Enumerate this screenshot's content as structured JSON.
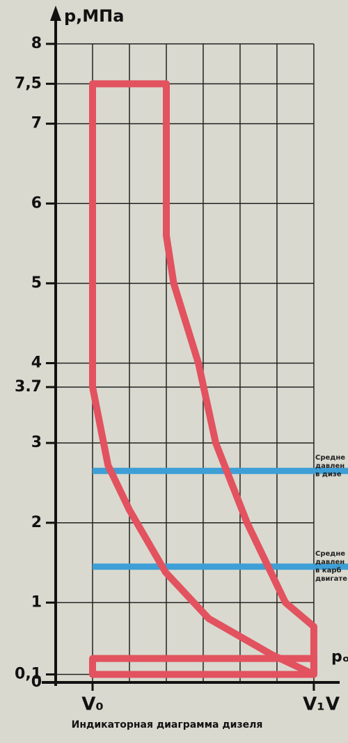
{
  "chart_data": {
    "type": "line",
    "title": "Индикаторная диаграмма дизеля",
    "ylabel": "p,МПа",
    "xlabel": "V",
    "ylim": [
      0,
      8
    ],
    "xlim": [
      0,
      7.7
    ],
    "yticks": [
      0,
      {
        "value": 0.1,
        "label": "0,1"
      },
      1,
      2,
      3,
      3.7,
      4,
      5,
      6,
      7,
      {
        "value": 7.5,
        "label": "7,5"
      },
      8
    ],
    "xticks": [
      {
        "value": 1,
        "label": "V₀"
      },
      {
        "value": 7,
        "label": "V₁"
      }
    ],
    "xgrid": [
      1,
      2,
      3,
      4,
      5,
      6,
      7
    ],
    "grid": true,
    "series": [
      {
        "color": "#e2525f",
        "x": [
          7,
          5.85,
          4.15,
          2.98,
          2,
          1.42,
          1,
          1,
          3,
          3,
          3.2,
          3.87,
          4.34,
          5.19,
          6.23,
          7,
          7
        ],
        "values": [
          0.1,
          0.35,
          0.8,
          1.38,
          2.16,
          2.72,
          3.7,
          7.5,
          7.5,
          5.6,
          5,
          4,
          3,
          2,
          1,
          0.7,
          0.1
        ]
      },
      {
        "color": "#e2525f",
        "x": [
          1,
          7,
          7,
          1,
          1
        ],
        "values": [
          0.1,
          0.1,
          0.3,
          0.3,
          0.1
        ]
      }
    ],
    "hlines": [
      {
        "value": 2.65,
        "color": "#3d9fd6",
        "label": [
          "Средне",
          "давлен",
          "в дизе"
        ]
      },
      {
        "value": 1.45,
        "color": "#3d9fd6",
        "label": [
          "Средне",
          "давлен",
          "в карб",
          "двигате"
        ]
      }
    ],
    "p0_label": "pₒ"
  }
}
